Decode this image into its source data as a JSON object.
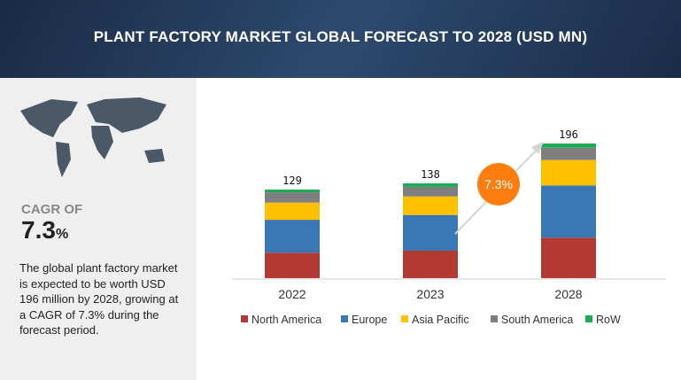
{
  "title": "PLANT FACTORY MARKET GLOBAL FORECAST TO 2028 (USD MN)",
  "left_panel": {
    "cagr_label": "CAGR OF",
    "cagr_value": "7.3",
    "cagr_unit": "%",
    "description": "The global plant factory market is expected to be worth USD 196 million by 2028, growing at a CAGR of 7.3% during the forecast period."
  },
  "chart_data": {
    "type": "bar",
    "stacked": true,
    "categories": [
      "2022",
      "2023",
      "2028"
    ],
    "totals": [
      "129",
      "138",
      "196"
    ],
    "series": [
      {
        "name": "North America",
        "color": "#b33a32",
        "values": [
          37,
          40,
          59
        ]
      },
      {
        "name": "Europe",
        "color": "#3a77b5",
        "values": [
          48,
          52,
          76
        ]
      },
      {
        "name": "Asia Pacific",
        "color": "#ffc000",
        "values": [
          25,
          27,
          37
        ]
      },
      {
        "name": "South America",
        "color": "#7f7f7f",
        "values": [
          15,
          14,
          18
        ]
      },
      {
        "name": "RoW",
        "color": "#1aab54",
        "values": [
          4,
          5,
          6
        ]
      }
    ],
    "annotation": "7.3%",
    "annotation_color": "#fd7e0f",
    "legend": "bottom",
    "grid": false
  }
}
